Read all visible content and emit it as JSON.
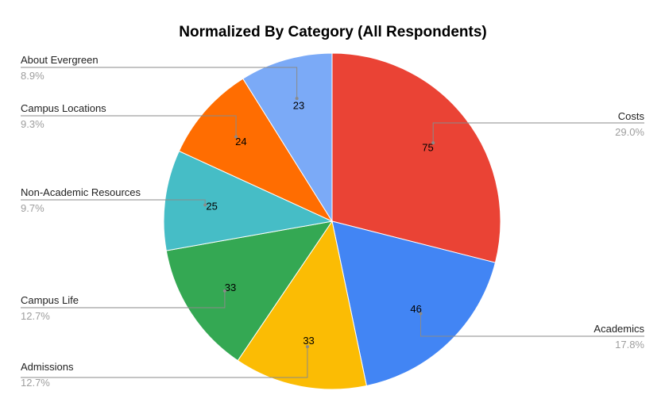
{
  "chart_data": {
    "type": "pie",
    "title": "Normalized By Category (All Respondents)",
    "slices": [
      {
        "name": "Costs",
        "value": 75,
        "percent": "29.0%",
        "color": "#EA4335"
      },
      {
        "name": "Academics",
        "value": 46,
        "percent": "17.8%",
        "color": "#4285F4"
      },
      {
        "name": "Admissions",
        "value": 33,
        "percent": "12.7%",
        "color": "#FBBC04"
      },
      {
        "name": "Campus Life",
        "value": 33,
        "percent": "12.7%",
        "color": "#34A853"
      },
      {
        "name": "Non-Academic Resources",
        "value": 25,
        "percent": "9.7%",
        "color": "#46BDC6"
      },
      {
        "name": "Campus Locations",
        "value": 24,
        "percent": "9.3%",
        "color": "#FF6D01"
      },
      {
        "name": "About Evergreen",
        "value": 23,
        "percent": "8.9%",
        "color": "#7BAAF7"
      }
    ],
    "legend": "callout-labels"
  }
}
